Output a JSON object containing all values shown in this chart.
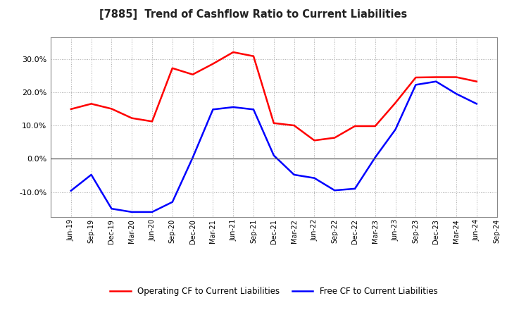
{
  "title": "[7885]  Trend of Cashflow Ratio to Current Liabilities",
  "x_labels": [
    "Jun-19",
    "Sep-19",
    "Dec-19",
    "Mar-20",
    "Jun-20",
    "Sep-20",
    "Dec-20",
    "Mar-21",
    "Jun-21",
    "Sep-21",
    "Dec-21",
    "Mar-22",
    "Jun-22",
    "Sep-22",
    "Dec-22",
    "Mar-23",
    "Jun-23",
    "Sep-23",
    "Dec-23",
    "Mar-24",
    "Jun-24",
    "Sep-24"
  ],
  "operating_cf": [
    0.149,
    0.165,
    0.15,
    0.122,
    0.112,
    0.272,
    0.253,
    0.285,
    0.32,
    0.308,
    0.107,
    0.1,
    0.055,
    0.063,
    0.098,
    0.098,
    0.168,
    0.244,
    0.245,
    0.245,
    0.232,
    null
  ],
  "free_cf": [
    -0.096,
    -0.048,
    -0.15,
    -0.16,
    -0.16,
    -0.13,
    0.003,
    0.148,
    0.155,
    0.148,
    0.01,
    -0.048,
    -0.058,
    -0.095,
    -0.09,
    0.004,
    0.088,
    0.222,
    0.232,
    0.195,
    0.165,
    null
  ],
  "ylim": [
    -0.175,
    0.365
  ],
  "yticks": [
    -0.1,
    0.0,
    0.1,
    0.2,
    0.3
  ],
  "operating_color": "#ff0000",
  "free_color": "#0000ff",
  "bg_color": "#ffffff",
  "plot_bg_color": "#ffffff",
  "grid_color": "#aaaaaa",
  "legend_op": "Operating CF to Current Liabilities",
  "legend_free": "Free CF to Current Liabilities"
}
